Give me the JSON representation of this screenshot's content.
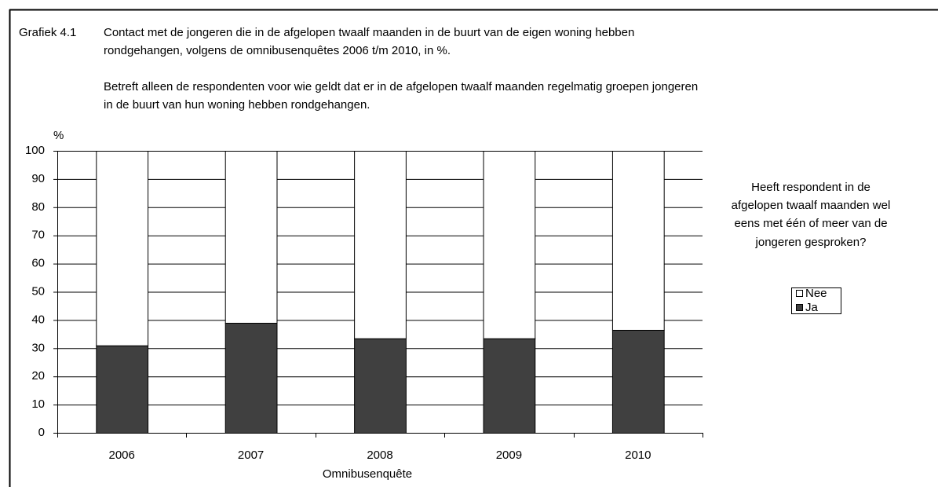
{
  "chart_data": {
    "type": "bar",
    "label": "Grafiek 4.1",
    "title": [
      "Contact met de jongeren die in de afgelopen twaalf maanden in de buurt van de eigen woning hebben",
      "rondgehangen, volgens de omnibusenquêtes 2006 t/m 2010, in %."
    ],
    "subtitle": [
      "Betreft alleen de respondenten voor wie geldt dat er in de afgelopen twaalf maanden regelmatig groepen jongeren",
      "in de buurt van hun woning hebben rondgehangen."
    ],
    "y_label": "%",
    "x_label": "Omnibusenquête",
    "legend_title": [
      "Heeft respondent in de",
      "afgelopen twaalf maanden wel",
      "eens met één of meer van de",
      "jongeren gesproken?"
    ],
    "categories": [
      "2006",
      "2007",
      "2008",
      "2009",
      "2010"
    ],
    "series": [
      {
        "name": "Ja",
        "color": "#404040",
        "values": [
          31,
          39,
          33.5,
          33.5,
          36.5
        ]
      },
      {
        "name": "Nee",
        "color": "#ffffff",
        "values": [
          69,
          61,
          66.5,
          66.5,
          63.5
        ]
      }
    ],
    "stacked": true,
    "ylim": [
      0,
      100
    ],
    "yticks": [
      0,
      10,
      20,
      30,
      40,
      50,
      60,
      70,
      80,
      90,
      100
    ],
    "grid": true
  }
}
